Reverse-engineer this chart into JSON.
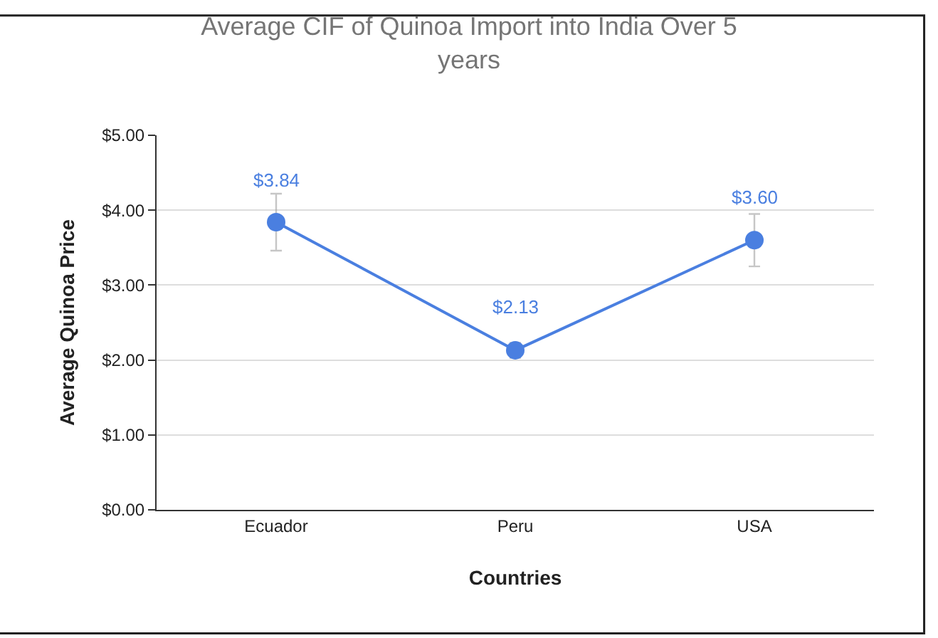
{
  "chart_data": {
    "type": "line",
    "title": "Average CIF of Quinoa Import into India Over 5 years",
    "xlabel": "Countries",
    "ylabel": "Average Quinoa Price",
    "categories": [
      "Ecuador",
      "Peru",
      "USA"
    ],
    "series": [
      {
        "color": "#4a7fe0",
        "values": [
          3.84,
          2.13,
          3.6
        ],
        "errors": [
          0.38,
          0.1,
          0.35
        ],
        "value_labels": [
          "$3.84",
          "$2.13",
          "$3.60"
        ]
      }
    ],
    "ylim": [
      0,
      5
    ],
    "yticks": [
      {
        "value": 0,
        "label": "$0.00"
      },
      {
        "value": 1,
        "label": "$1.00"
      },
      {
        "value": 2,
        "label": "$2.00"
      },
      {
        "value": 3,
        "label": "$3.00"
      },
      {
        "value": 4,
        "label": "$4.00"
      },
      {
        "value": 5,
        "label": "$5.00"
      }
    ],
    "grid": "y",
    "marker": "circle",
    "line_style": "solid"
  }
}
